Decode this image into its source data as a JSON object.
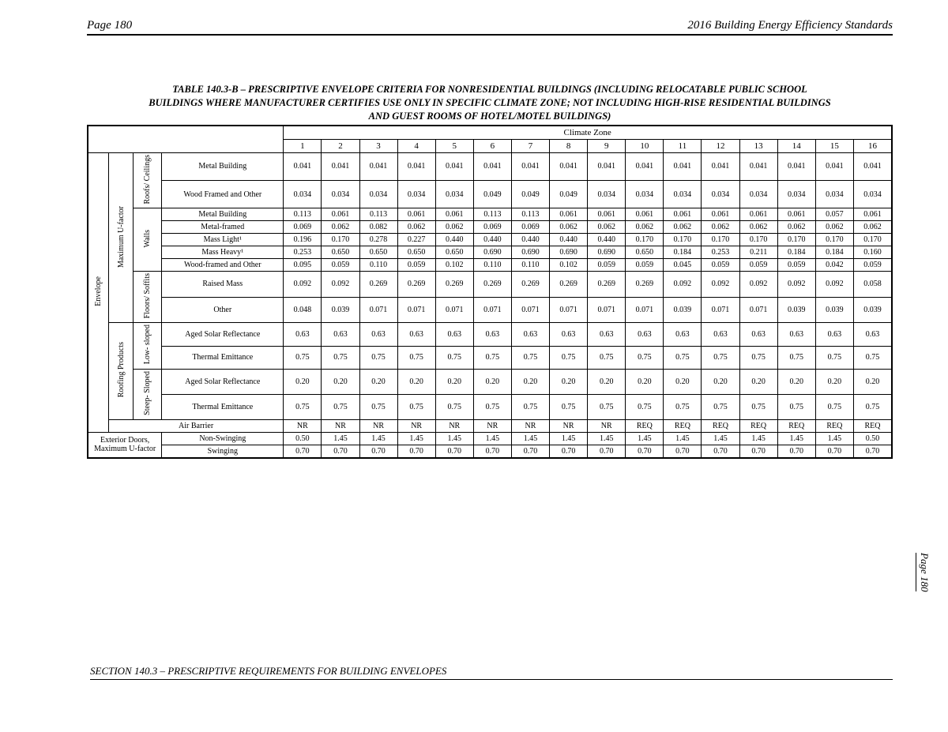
{
  "header": {
    "page_left": "Page 180",
    "doc_right": "2016 Building Energy Efficiency Standards"
  },
  "title_lines": [
    "TABLE 140.3-B – PRESCRIPTIVE ENVELOPE CRITERIA FOR NONRESIDENTIAL BUILDINGS (INCLUDING RELOCATABLE PUBLIC SCHOOL",
    "BUILDINGS WHERE MANUFACTURER CERTIFIES USE ONLY IN SPECIFIC CLIMATE ZONE; NOT INCLUDING HIGH-RISE RESIDENTIAL BUILDINGS",
    "AND GUEST ROOMS OF HOTEL/MOTEL BUILDINGS)"
  ],
  "climate_label": "Climate Zone",
  "zones": [
    "1",
    "2",
    "3",
    "4",
    "5",
    "6",
    "7",
    "8",
    "9",
    "10",
    "11",
    "12",
    "13",
    "14",
    "15",
    "16"
  ],
  "stub_labels": {
    "envelope": "Envelope",
    "max_u": "Maximum U-factor",
    "roofing_products": "Roofing Products",
    "roofs_ceilings": "Roofs/ Ceilings",
    "walls": "Walls",
    "floors_soffits": "Floors/ Soffits",
    "low_sloped": "Low- sloped",
    "steep_sloped": "Steep- Sloped",
    "air_barrier": "Air Barrier",
    "ext_doors": "Exterior Doors, Maximum U-factor"
  },
  "rows": [
    {
      "label": "Metal Building",
      "v": [
        "0.041",
        "0.041",
        "0.041",
        "0.041",
        "0.041",
        "0.041",
        "0.041",
        "0.041",
        "0.041",
        "0.041",
        "0.041",
        "0.041",
        "0.041",
        "0.041",
        "0.041",
        "0.041"
      ]
    },
    {
      "label": "Wood Framed and Other",
      "v": [
        "0.034",
        "0.034",
        "0.034",
        "0.034",
        "0.034",
        "0.049",
        "0.049",
        "0.049",
        "0.034",
        "0.034",
        "0.034",
        "0.034",
        "0.034",
        "0.034",
        "0.034",
        "0.034"
      ]
    },
    {
      "label": "Metal Building",
      "v": [
        "0.113",
        "0.061",
        "0.113",
        "0.061",
        "0.061",
        "0.113",
        "0.113",
        "0.061",
        "0.061",
        "0.061",
        "0.061",
        "0.061",
        "0.061",
        "0.061",
        "0.057",
        "0.061"
      ]
    },
    {
      "label": "Metal-framed",
      "v": [
        "0.069",
        "0.062",
        "0.082",
        "0.062",
        "0.062",
        "0.069",
        "0.069",
        "0.062",
        "0.062",
        "0.062",
        "0.062",
        "0.062",
        "0.062",
        "0.062",
        "0.062",
        "0.062"
      ]
    },
    {
      "label": "Mass Light¹",
      "v": [
        "0.196",
        "0.170",
        "0.278",
        "0.227",
        "0.440",
        "0.440",
        "0.440",
        "0.440",
        "0.440",
        "0.170",
        "0.170",
        "0.170",
        "0.170",
        "0.170",
        "0.170",
        "0.170"
      ]
    },
    {
      "label": "Mass Heavy¹",
      "v": [
        "0.253",
        "0.650",
        "0.650",
        "0.650",
        "0.650",
        "0.690",
        "0.690",
        "0.690",
        "0.690",
        "0.650",
        "0.184",
        "0.253",
        "0.211",
        "0.184",
        "0.184",
        "0.160"
      ]
    },
    {
      "label": "Wood-framed and Other",
      "v": [
        "0.095",
        "0.059",
        "0.110",
        "0.059",
        "0.102",
        "0.110",
        "0.110",
        "0.102",
        "0.059",
        "0.059",
        "0.045",
        "0.059",
        "0.059",
        "0.059",
        "0.042",
        "0.059"
      ]
    },
    {
      "label": "Raised Mass",
      "v": [
        "0.092",
        "0.092",
        "0.269",
        "0.269",
        "0.269",
        "0.269",
        "0.269",
        "0.269",
        "0.269",
        "0.269",
        "0.092",
        "0.092",
        "0.092",
        "0.092",
        "0.092",
        "0.058"
      ]
    },
    {
      "label": "Other",
      "v": [
        "0.048",
        "0.039",
        "0.071",
        "0.071",
        "0.071",
        "0.071",
        "0.071",
        "0.071",
        "0.071",
        "0.071",
        "0.039",
        "0.071",
        "0.071",
        "0.039",
        "0.039",
        "0.039"
      ]
    },
    {
      "label": "Aged Solar Reflectance",
      "v": [
        "0.63",
        "0.63",
        "0.63",
        "0.63",
        "0.63",
        "0.63",
        "0.63",
        "0.63",
        "0.63",
        "0.63",
        "0.63",
        "0.63",
        "0.63",
        "0.63",
        "0.63",
        "0.63"
      ]
    },
    {
      "label": "Thermal Emittance",
      "v": [
        "0.75",
        "0.75",
        "0.75",
        "0.75",
        "0.75",
        "0.75",
        "0.75",
        "0.75",
        "0.75",
        "0.75",
        "0.75",
        "0.75",
        "0.75",
        "0.75",
        "0.75",
        "0.75"
      ]
    },
    {
      "label": "Aged Solar Reflectance",
      "v": [
        "0.20",
        "0.20",
        "0.20",
        "0.20",
        "0.20",
        "0.20",
        "0.20",
        "0.20",
        "0.20",
        "0.20",
        "0.20",
        "0.20",
        "0.20",
        "0.20",
        "0.20",
        "0.20"
      ]
    },
    {
      "label": "Thermal Emittance",
      "v": [
        "0.75",
        "0.75",
        "0.75",
        "0.75",
        "0.75",
        "0.75",
        "0.75",
        "0.75",
        "0.75",
        "0.75",
        "0.75",
        "0.75",
        "0.75",
        "0.75",
        "0.75",
        "0.75"
      ]
    },
    {
      "label": "__air__",
      "v": [
        "NR",
        "NR",
        "NR",
        "NR",
        "NR",
        "NR",
        "NR",
        "NR",
        "NR",
        "REQ",
        "REQ",
        "REQ",
        "REQ",
        "REQ",
        "REQ",
        "REQ"
      ]
    },
    {
      "label": "Non-Swinging",
      "v": [
        "0.50",
        "1.45",
        "1.45",
        "1.45",
        "1.45",
        "1.45",
        "1.45",
        "1.45",
        "1.45",
        "1.45",
        "1.45",
        "1.45",
        "1.45",
        "1.45",
        "1.45",
        "0.50"
      ]
    },
    {
      "label": "Swinging",
      "v": [
        "0.70",
        "0.70",
        "0.70",
        "0.70",
        "0.70",
        "0.70",
        "0.70",
        "0.70",
        "0.70",
        "0.70",
        "0.70",
        "0.70",
        "0.70",
        "0.70",
        "0.70",
        "0.70"
      ]
    }
  ],
  "footer": "SECTION 140.3 – PRESCRIPTIVE REQUIREMENTS FOR BUILDING ENVELOPES",
  "side_page": "Page 180"
}
